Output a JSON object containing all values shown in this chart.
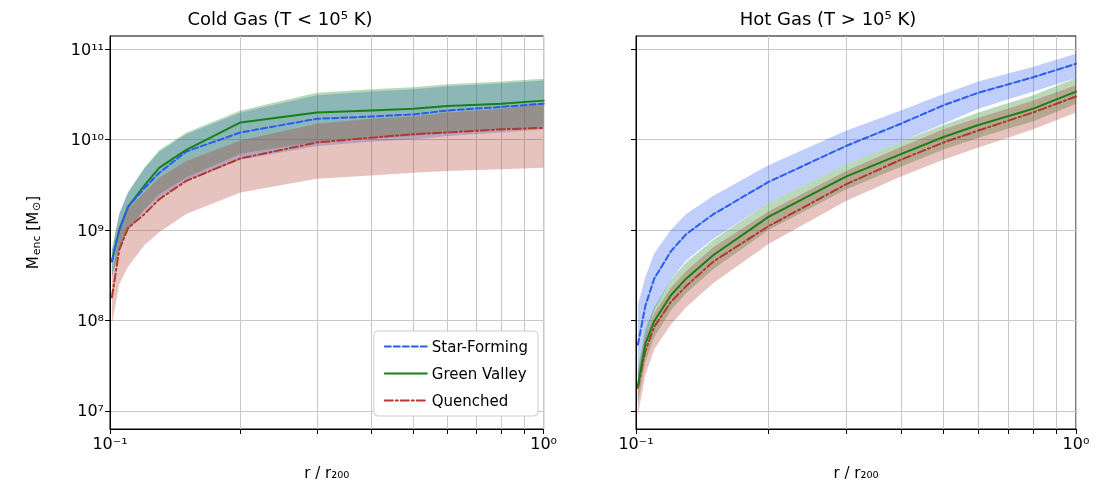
{
  "chart_data": [
    {
      "type": "line",
      "title": "Cold Gas (T < 10⁵ K)",
      "xlabel": "r / r₂₀₀",
      "ylabel": "M$_{enc}$ [M$_{⊙}$]",
      "log": "xy",
      "grid": true,
      "legend": "bottom right",
      "x": [
        0.101,
        0.105,
        0.11,
        0.12,
        0.13,
        0.15,
        0.2,
        0.3,
        0.4,
        0.5,
        0.6,
        0.8,
        1.0
      ],
      "xlim": [
        0.1,
        1
      ],
      "xticks": [
        {
          "value": 0.1,
          "label": "10⁻¹"
        },
        {
          "value": 0.2,
          "label": null
        },
        {
          "value": 0.3,
          "label": null
        },
        {
          "value": 0.4,
          "label": null
        },
        {
          "value": 0.5,
          "label": null
        },
        {
          "value": 0.6,
          "label": null
        },
        {
          "value": 0.7,
          "label": null
        },
        {
          "value": 0.8,
          "label": null
        },
        {
          "value": 0.9,
          "label": null
        },
        {
          "value": 1,
          "label": "10⁰"
        }
      ],
      "ylim": [
        6300000,
        140000000000
      ],
      "yticks": [
        {
          "value": 10000000,
          "label": "10⁷"
        },
        {
          "value": 100000000,
          "label": "10⁸"
        },
        {
          "value": 1000000000,
          "label": "10⁹"
        },
        {
          "value": 10000000000,
          "label": "10¹⁰"
        },
        {
          "value": 100000000000,
          "label": "10¹¹"
        }
      ],
      "series": [
        {
          "name": "Star-Forming",
          "color": "#2a5cf0",
          "line_style": "dashed",
          "values": [
            450000000.0,
            1000000000.0,
            1800000000.0,
            2900000000.0,
            4300000000.0,
            7400000000.0,
            12000000000.0,
            17000000000.0,
            18000000000.0,
            19000000000.0,
            21000000000.0,
            23000000000.0,
            25000000000.0
          ],
          "upper": [
            600000000.0,
            1500000000.0,
            2600000000.0,
            4800000000.0,
            7400000000.0,
            11500000000.0,
            20000000000.0,
            31000000000.0,
            34000000000.0,
            36000000000.0,
            39000000000.0,
            42000000000.0,
            45000000000.0
          ],
          "lower": [
            300000000.0,
            600000000.0,
            1000000000.0,
            1600000000.0,
            2300000000.0,
            3500000000.0,
            6000000000.0,
            8500000000.0,
            9500000000.0,
            10000000000.0,
            11000000000.0,
            12000000000.0,
            13000000000.0
          ]
        },
        {
          "name": "Green Valley",
          "color": "#17801a",
          "line_style": "solid",
          "values": [
            450000000.0,
            1000000000.0,
            1800000000.0,
            3100000000.0,
            4900000000.0,
            7700000000.0,
            15500000000.0,
            20000000000.0,
            21000000000.0,
            22000000000.0,
            23500000000.0,
            25000000000.0,
            27000000000.0
          ],
          "upper": [
            600000000.0,
            1500000000.0,
            2600000000.0,
            4900000000.0,
            7700000000.0,
            12000000000.0,
            21000000000.0,
            33000000000.0,
            36000000000.0,
            38000000000.0,
            41000000000.0,
            44000000000.0,
            47000000000.0
          ],
          "lower": [
            300000000.0,
            600000000.0,
            1000000000.0,
            1700000000.0,
            2500000000.0,
            3800000000.0,
            7000000000.0,
            9500000000.0,
            10500000000.0,
            11000000000.0,
            12000000000.0,
            13000000000.0,
            14000000000.0
          ]
        },
        {
          "name": "Quenched",
          "color": "#b0392e",
          "line_style": "dashdot",
          "values": [
            180000000.0,
            600000000.0,
            1050000000.0,
            1500000000.0,
            2200000000.0,
            3500000000.0,
            6200000000.0,
            9300000000.0,
            10500000000.0,
            11500000000.0,
            12000000000.0,
            13000000000.0,
            13500000000.0
          ],
          "upper": [
            300000000.0,
            900000000.0,
            1700000000.0,
            2600000000.0,
            3800000000.0,
            5800000000.0,
            9800000000.0,
            15000000000.0,
            17000000000.0,
            18000000000.0,
            20000000000.0,
            22000000000.0,
            25000000000.0
          ],
          "lower": [
            90000000.0,
            250000000.0,
            390000000.0,
            680000000.0,
            950000000.0,
            1500000000.0,
            2600000000.0,
            3700000000.0,
            4000000000.0,
            4300000000.0,
            4500000000.0,
            4700000000.0,
            4900000000.0
          ]
        }
      ]
    },
    {
      "type": "line",
      "title": "Hot Gas (T > 10⁵ K)",
      "xlabel": "r / r₂₀₀",
      "log": "xy",
      "grid": true,
      "tick_labels": "x",
      "x": [
        0.101,
        0.105,
        0.11,
        0.12,
        0.13,
        0.15,
        0.2,
        0.3,
        0.4,
        0.5,
        0.6,
        0.8,
        1.0
      ],
      "xlim": [
        0.1,
        1
      ],
      "xticks": [
        {
          "value": 0.1,
          "label": "10⁻¹"
        },
        {
          "value": 0.2,
          "label": null
        },
        {
          "value": 0.3,
          "label": null
        },
        {
          "value": 0.4,
          "label": null
        },
        {
          "value": 0.5,
          "label": null
        },
        {
          "value": 0.6,
          "label": null
        },
        {
          "value": 0.7,
          "label": null
        },
        {
          "value": 0.8,
          "label": null
        },
        {
          "value": 0.9,
          "label": null
        },
        {
          "value": 1,
          "label": "10⁰"
        }
      ],
      "ylim": [
        6300000,
        140000000000
      ],
      "yticks": [
        {
          "value": 10000000,
          "label": null
        },
        {
          "value": 100000000,
          "label": null
        },
        {
          "value": 1000000000,
          "label": null
        },
        {
          "value": 10000000000,
          "label": null
        },
        {
          "value": 100000000000,
          "label": null
        }
      ],
      "series": [
        {
          "color": "#2a5cf0",
          "line_style": "dashed",
          "values": [
            54000000.0,
            145000000.0,
            290000000.0,
            580000000.0,
            900000000.0,
            1500000000.0,
            3400000000.0,
            8500000000.0,
            15000000000.0,
            24000000000.0,
            33000000000.0,
            49000000000.0,
            69000000000.0
          ],
          "upper": [
            150000000.0,
            300000000.0,
            550000000.0,
            1000000000.0,
            1500000000.0,
            2400000000.0,
            5200000000.0,
            12500000000.0,
            21000000000.0,
            32000000000.0,
            44000000000.0,
            64000000000.0,
            89000000000.0
          ],
          "lower": [
            22000000.0,
            60000000.0,
            130000000.0,
            280000000.0,
            460000000.0,
            800000000.0,
            2000000000.0,
            5300000000.0,
            9500000000.0,
            15000000000.0,
            22000000000.0,
            34000000000.0,
            48000000000.0
          ]
        },
        {
          "color": "#17801a",
          "line_style": "solid",
          "values": [
            19000000.0,
            55000000.0,
            98000000.0,
            190000000.0,
            290000000.0,
            530000000.0,
            1400000000.0,
            3900000000.0,
            6900000000.0,
            10700000000.0,
            14500000000.0,
            22000000000.0,
            34000000000.0
          ],
          "upper": [
            30000000.0,
            80000000.0,
            140000000.0,
            280000000.0,
            440000000.0,
            780000000.0,
            2000000000.0,
            5300000000.0,
            9500000000.0,
            14500000000.0,
            20000000000.0,
            31000000000.0,
            48000000000.0
          ],
          "lower": [
            12000000.0,
            35000000.0,
            65000000.0,
            130000000.0,
            200000000.0,
            370000000.0,
            1000000000.0,
            2800000000.0,
            5000000000.0,
            7800000000.0,
            10500000000.0,
            16000000000.0,
            25000000000.0
          ]
        },
        {
          "color": "#b0392e",
          "line_style": "dashdot",
          "values": [
            18000000.0,
            46000000.0,
            85000000.0,
            160000000.0,
            240000000.0,
            450000000.0,
            1100000000.0,
            3200000000.0,
            6000000000.0,
            9300000000.0,
            12600000000.0,
            20000000000.0,
            30000000000.0
          ],
          "upper": [
            26000000.0,
            65000000.0,
            120000000.0,
            230000000.0,
            350000000.0,
            650000000.0,
            1600000000.0,
            4500000000.0,
            8300000000.0,
            13000000000.0,
            17500000000.0,
            27000000000.0,
            40000000000.0
          ],
          "lower": [
            9000000.0,
            25000000.0,
            48000000.0,
            90000000.0,
            140000000.0,
            260000000.0,
            700000000.0,
            2100000000.0,
            3900000000.0,
            6000000000.0,
            8200000000.0,
            13000000000.0,
            20000000000.0
          ]
        }
      ]
    }
  ]
}
